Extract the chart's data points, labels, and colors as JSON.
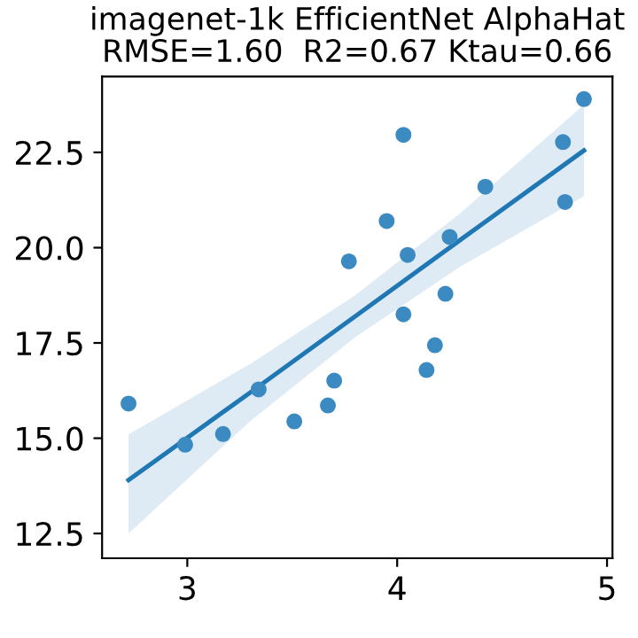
{
  "chart_data": {
    "type": "scatter",
    "title": "imagenet-1k EfficientNet AlphaHat\nRMSE=1.60  R2=0.67 Ktau=0.66",
    "xlim": [
      2.594,
      5.026
    ],
    "ylim": [
      11.85,
      24.49
    ],
    "xticks": [
      3,
      4,
      5
    ],
    "yticks": [
      12.5,
      {
        "value": 15,
        "label": "15.0"
      },
      17.5,
      {
        "value": 20,
        "label": "20.0"
      },
      22.5
    ],
    "grid": false,
    "series": [
      {
        "marker": "circle",
        "color": "#3b8bc2",
        "x": [
          4.89,
          4.03,
          4.79,
          4.42,
          4.8,
          3.95,
          4.25,
          4.05,
          3.77,
          4.23,
          4.03,
          4.18,
          4.14,
          3.7,
          3.34,
          2.72,
          3.67,
          3.51,
          3.17,
          2.99
        ],
        "values": [
          23.9,
          22.96,
          22.77,
          21.6,
          21.2,
          20.7,
          20.28,
          19.81,
          19.64,
          18.79,
          18.25,
          17.44,
          16.79,
          16.51,
          16.28,
          15.91,
          15.86,
          15.44,
          15.11,
          14.83
        ]
      },
      {
        "type": "line",
        "marker": "none",
        "color": "#1f77b4",
        "x": [
          2.72,
          3.3,
          3.8,
          4.3,
          4.89
        ],
        "values": [
          13.9,
          16.2,
          18.2,
          20.2,
          22.55
        ],
        "lower": [
          12.5,
          15.45,
          17.65,
          19.5,
          21.35
        ],
        "upper": [
          15.1,
          16.95,
          18.75,
          20.9,
          23.75
        ]
      }
    ]
  }
}
